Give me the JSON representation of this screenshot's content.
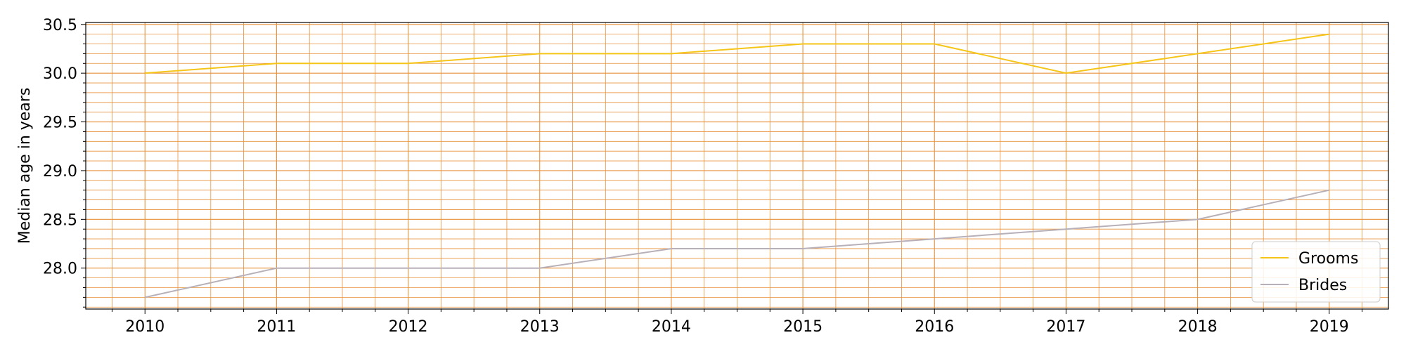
{
  "chart_data": {
    "type": "line",
    "title": "",
    "xlabel": "",
    "ylabel": "Median age in years",
    "categories": [
      "2010",
      "2011",
      "2012",
      "2013",
      "2014",
      "2015",
      "2016",
      "2017",
      "2018",
      "2019"
    ],
    "x_tick_labels": [
      "2010",
      "2011",
      "2012",
      "2013",
      "2014",
      "2015",
      "2016",
      "2017",
      "2018",
      "2019"
    ],
    "y_tick_labels": [
      "28.0",
      "28.5",
      "29.0",
      "29.5",
      "30.0",
      "30.5"
    ],
    "y_ticks": [
      28.0,
      28.5,
      29.0,
      29.5,
      30.0,
      30.5
    ],
    "xlim": [
      2009.55,
      2019.45
    ],
    "ylim": [
      27.58,
      30.52
    ],
    "grid": true,
    "minor_grid": true,
    "grid_color": "#e8913a",
    "legend_position": "lower right",
    "series": [
      {
        "name": "Grooms",
        "color": "#f5c518",
        "values": [
          30.0,
          30.1,
          30.1,
          30.2,
          30.2,
          30.3,
          30.3,
          30.0,
          30.2,
          30.4
        ]
      },
      {
        "name": "Brides",
        "color": "#b8b0b8",
        "values": [
          27.7,
          28.0,
          28.0,
          28.0,
          28.2,
          28.2,
          28.3,
          28.4,
          28.5,
          28.8
        ]
      }
    ]
  }
}
